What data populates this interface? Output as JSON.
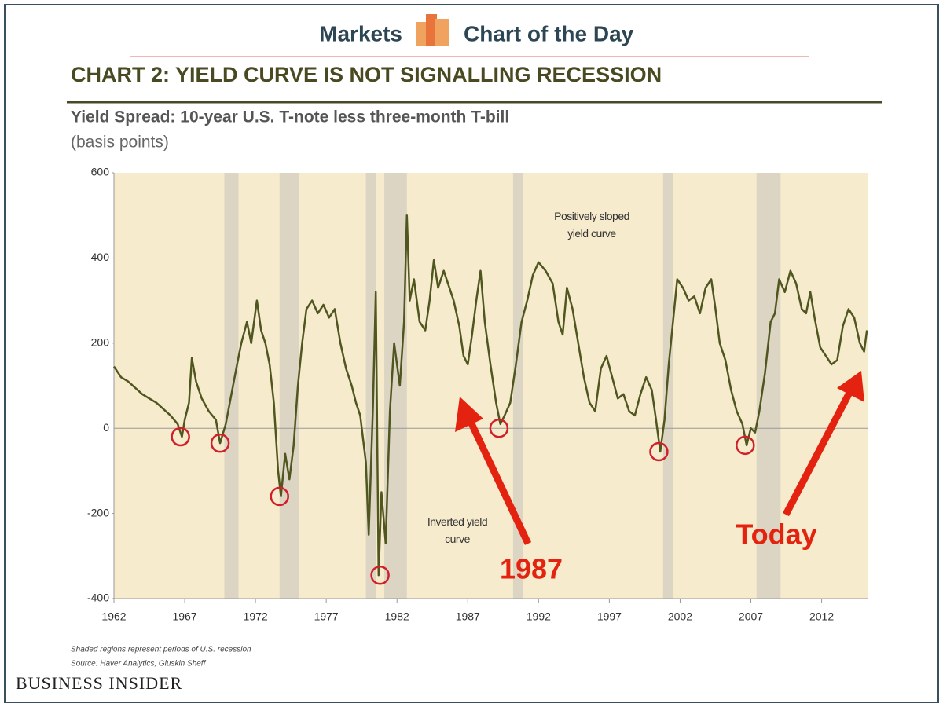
{
  "header": {
    "left": "Markets",
    "right": "Chart of the Day"
  },
  "chart_data": {
    "type": "line",
    "title": "CHART 2: YIELD CURVE IS NOT SIGNALLING RECESSION",
    "subtitle": "Yield Spread: 10-year U.S. T-note less three-month T-bill",
    "y_label": "(basis points)",
    "xlim": [
      1962,
      2015.3
    ],
    "ylim": [
      -400,
      600
    ],
    "xticks": [
      1962,
      1967,
      1972,
      1977,
      1982,
      1987,
      1992,
      1997,
      2002,
      2007,
      2012
    ],
    "yticks": [
      -400,
      -200,
      0,
      200,
      400,
      600
    ],
    "color": "#50561f",
    "shaded_regions": [
      [
        1969.8,
        1970.8
      ],
      [
        1973.7,
        1975.1
      ],
      [
        1979.8,
        1980.5
      ],
      [
        1981.1,
        1982.7
      ],
      [
        1990.2,
        1990.9
      ],
      [
        2000.8,
        2001.5
      ],
      [
        2007.4,
        2009.1
      ]
    ],
    "x": [
      1962.0,
      1962.5,
      1963,
      1963.5,
      1964,
      1964.5,
      1965,
      1965.5,
      1966,
      1966.5,
      1966.8,
      1967.0,
      1967.3,
      1967.5,
      1967.8,
      1968.2,
      1968.7,
      1969.2,
      1969.5,
      1969.9,
      1970.3,
      1970.7,
      1971.0,
      1971.4,
      1971.7,
      1972.1,
      1972.4,
      1972.7,
      1973.0,
      1973.3,
      1973.6,
      1973.8,
      1974.1,
      1974.4,
      1974.7,
      1975.0,
      1975.3,
      1975.6,
      1976.0,
      1976.4,
      1976.8,
      1977.2,
      1977.6,
      1978.0,
      1978.4,
      1978.8,
      1979.1,
      1979.4,
      1979.8,
      1980.0,
      1980.3,
      1980.5,
      1980.7,
      1980.9,
      1981.2,
      1981.5,
      1981.8,
      1982.2,
      1982.5,
      1982.7,
      1982.9,
      1983.2,
      1983.6,
      1984.0,
      1984.3,
      1984.6,
      1984.9,
      1985.3,
      1985.7,
      1986.0,
      1986.4,
      1986.7,
      1987.0,
      1987.3,
      1987.6,
      1987.9,
      1988.2,
      1988.6,
      1989.0,
      1989.3,
      1989.6,
      1990.0,
      1990.4,
      1990.8,
      1991.2,
      1991.6,
      1992.0,
      1992.5,
      1993.0,
      1993.4,
      1993.7,
      1994.0,
      1994.4,
      1994.8,
      1995.2,
      1995.6,
      1996.0,
      1996.4,
      1996.8,
      1997.2,
      1997.6,
      1998.0,
      1998.4,
      1998.8,
      1999.2,
      1999.6,
      2000.0,
      2000.3,
      2000.6,
      2000.9,
      2001.2,
      2001.5,
      2001.8,
      2002.2,
      2002.6,
      2003.0,
      2003.4,
      2003.8,
      2004.2,
      2004.5,
      2004.8,
      2005.2,
      2005.6,
      2006.0,
      2006.4,
      2006.7,
      2007.0,
      2007.3,
      2007.6,
      2008.0,
      2008.4,
      2008.7,
      2009.0,
      2009.4,
      2009.8,
      2010.2,
      2010.6,
      2010.9,
      2011.2,
      2011.5,
      2011.9,
      2012.3,
      2012.7,
      2013.1,
      2013.5,
      2013.9,
      2014.3,
      2014.7,
      2015.0,
      2015.2
    ],
    "values": [
      145,
      120,
      110,
      95,
      80,
      70,
      60,
      45,
      30,
      10,
      -20,
      20,
      60,
      165,
      110,
      70,
      40,
      20,
      -35,
      10,
      80,
      150,
      200,
      250,
      200,
      300,
      230,
      200,
      150,
      60,
      -100,
      -160,
      -60,
      -120,
      -40,
      100,
      200,
      280,
      300,
      270,
      290,
      260,
      280,
      200,
      140,
      100,
      60,
      30,
      -80,
      -250,
      50,
      320,
      -345,
      -150,
      -270,
      40,
      200,
      100,
      250,
      500,
      300,
      350,
      250,
      230,
      300,
      395,
      330,
      370,
      330,
      300,
      240,
      170,
      150,
      220,
      300,
      370,
      250,
      150,
      60,
      10,
      30,
      60,
      150,
      250,
      300,
      360,
      390,
      370,
      340,
      250,
      220,
      330,
      280,
      200,
      120,
      60,
      40,
      140,
      170,
      120,
      70,
      80,
      40,
      30,
      80,
      120,
      90,
      20,
      -55,
      20,
      150,
      250,
      350,
      330,
      300,
      310,
      270,
      330,
      350,
      280,
      200,
      160,
      90,
      40,
      10,
      -40,
      0,
      -10,
      40,
      130,
      250,
      270,
      350,
      320,
      370,
      340,
      280,
      270,
      320,
      260,
      190,
      170,
      150,
      160,
      240,
      280,
      260,
      200,
      180,
      230
    ],
    "highlights": [
      {
        "x": 1966.7,
        "y": -20
      },
      {
        "x": 1969.5,
        "y": -35
      },
      {
        "x": 1973.7,
        "y": -160
      },
      {
        "x": 1980.8,
        "y": -345
      },
      {
        "x": 1989.2,
        "y": 0
      },
      {
        "x": 2000.5,
        "y": -55
      },
      {
        "x": 2006.6,
        "y": -40
      }
    ],
    "annotations": {
      "positive": [
        "Positively sloped",
        "yield curve"
      ],
      "inverted": [
        "Inverted yield",
        "curve"
      ],
      "callout_1987": "1987",
      "callout_today": "Today"
    },
    "notes": [
      "Shaded regions represent periods of U.S. recession",
      "Source: Haver Analytics, Gluskin Sheff"
    ]
  },
  "footer": {
    "brand": "BUSINESS INSIDER"
  }
}
